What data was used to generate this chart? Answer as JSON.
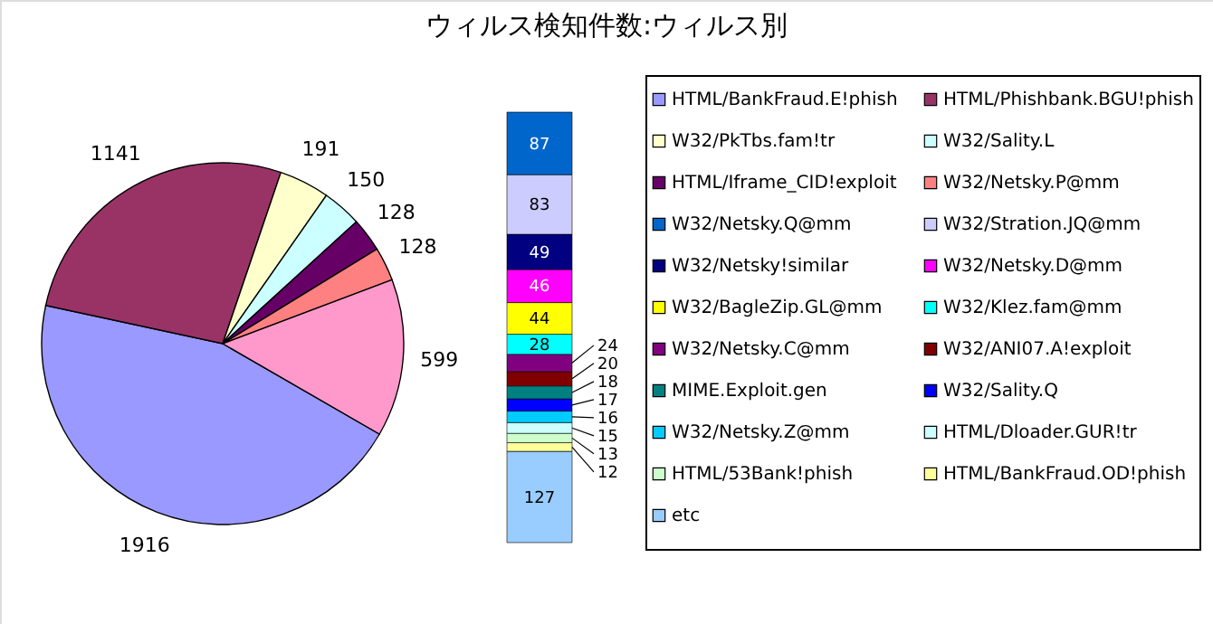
{
  "chart_data": [
    {
      "type": "pie",
      "title": "ウィルス検知件数:ウィルス別",
      "legend": "right",
      "data_labels": true,
      "categories": [
        "HTML/BankFraud.E!phish",
        "HTML/Phishbank.BGU!phish",
        "W32/PkTbs.fam!tr",
        "W32/Sality.L",
        "HTML/Iframe_CID!exploit",
        "W32/Netsky.P@mm",
        null
      ],
      "values": [
        1916,
        1141,
        191,
        150,
        128,
        128,
        599
      ],
      "colors": [
        "#9999ff",
        "#993366",
        "#ffffcc",
        "#ccffff",
        "#660066",
        "#ff8080",
        "#ff99cc"
      ]
    },
    {
      "type": "bar",
      "stacked": true,
      "legend": "right",
      "data_labels": true,
      "categories": [
        null
      ],
      "series": [
        {
          "name": "etc",
          "color": "#99ccff",
          "values": [
            127
          ]
        },
        {
          "name": "HTML/BankFraud.OD!phish",
          "color": "#ffff99",
          "values": [
            12
          ]
        },
        {
          "name": "HTML/53Bank!phish",
          "color": "#ccffcc",
          "values": [
            13
          ]
        },
        {
          "name": "HTML/Dloader.GUR!tr",
          "color": "#ccffff",
          "values": [
            15
          ]
        },
        {
          "name": "W32/Netsky.Z@mm",
          "color": "#00ccff",
          "values": [
            16
          ]
        },
        {
          "name": "W32/Sality.Q",
          "color": "#0000ff",
          "values": [
            17
          ]
        },
        {
          "name": "MIME.Exploit.gen",
          "color": "#008080",
          "values": [
            18
          ]
        },
        {
          "name": "W32/ANI07.A!exploit",
          "color": "#800000",
          "values": [
            20
          ]
        },
        {
          "name": "W32/Netsky.C@mm",
          "color": "#800080",
          "values": [
            24
          ]
        },
        {
          "name": "W32/Klez.fam@mm",
          "color": "#00ffff",
          "values": [
            28
          ]
        },
        {
          "name": "W32/BagleZip.GL@mm",
          "color": "#ffff00",
          "values": [
            44
          ]
        },
        {
          "name": "W32/Netsky.D@mm",
          "color": "#ff00ff",
          "values": [
            46
          ]
        },
        {
          "name": "W32/Netsky!similar",
          "color": "#000080",
          "values": [
            49
          ]
        },
        {
          "name": "W32/Stration.JQ@mm",
          "color": "#ccccff",
          "values": [
            83
          ]
        },
        {
          "name": "W32/Netsky.Q@mm",
          "color": "#0066cc",
          "values": [
            87
          ]
        }
      ]
    }
  ]
}
